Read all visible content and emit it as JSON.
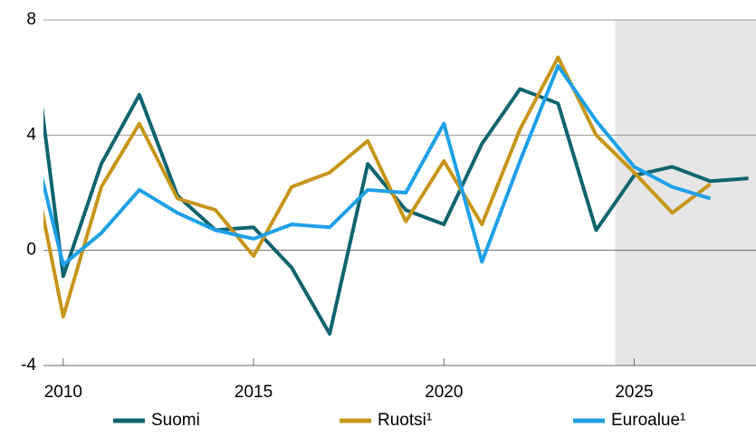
{
  "chart_data": {
    "type": "line",
    "x": [
      2009,
      2010,
      2011,
      2012,
      2013,
      2014,
      2015,
      2016,
      2017,
      2018,
      2019,
      2020,
      2021,
      2022,
      2023,
      2024,
      2025,
      2026,
      2027,
      2028
    ],
    "series": [
      {
        "name": "Suomi",
        "color": "#0e6470",
        "values": [
          9.5,
          -0.9,
          3.0,
          5.4,
          1.9,
          0.7,
          0.8,
          -0.6,
          -2.9,
          3.0,
          1.4,
          0.9,
          3.7,
          5.6,
          5.1,
          0.7,
          2.6,
          2.9,
          2.4,
          2.5
        ]
      },
      {
        "name": "Ruotsi¹",
        "color": "#c8951a",
        "values": [
          4.3,
          -2.3,
          2.2,
          4.4,
          1.8,
          1.4,
          -0.2,
          2.2,
          2.7,
          3.8,
          1.0,
          3.1,
          0.9,
          4.2,
          6.7,
          4.0,
          2.7,
          1.3,
          2.3,
          null
        ]
      },
      {
        "name": "Euroalue¹",
        "color": "#1ea0e6",
        "values": [
          4.9,
          -0.5,
          0.6,
          2.1,
          1.3,
          0.7,
          0.4,
          0.9,
          0.8,
          2.1,
          2.0,
          4.4,
          -0.4,
          3.1,
          6.4,
          4.5,
          2.9,
          2.2,
          1.8,
          null
        ]
      }
    ],
    "xlim": [
      2009.48,
      2028.2
    ],
    "xticks": [
      2010,
      2015,
      2020,
      2025
    ],
    "ylim": [
      -4,
      8
    ],
    "yticks": [
      -4,
      0,
      4,
      8
    ],
    "grid": true,
    "shade": [
      2024.5,
      2028.2
    ],
    "legend": "bottom"
  }
}
